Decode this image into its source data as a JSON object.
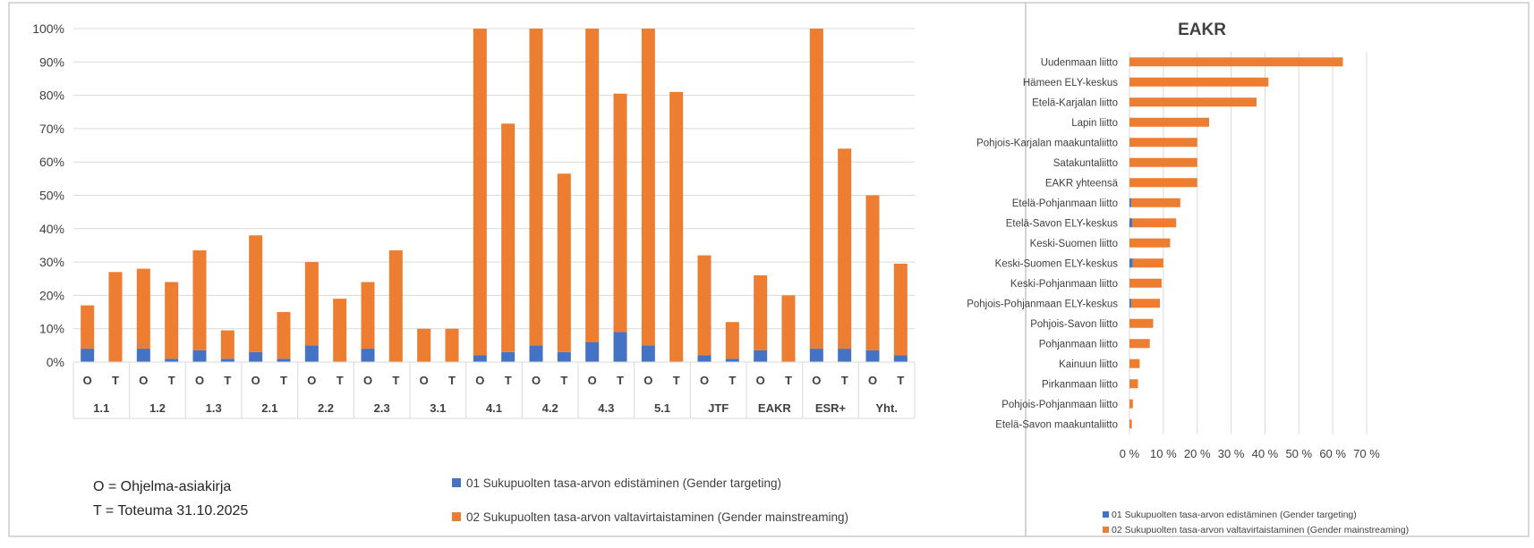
{
  "colors": {
    "targeting": "#4472C4",
    "mainstreaming": "#ED7D31",
    "grid": "#d9d9d9",
    "text": "#404040"
  },
  "chart_data": [
    {
      "type": "bar",
      "stacked": true,
      "yticks": [
        "0%",
        "10%",
        "20%",
        "30%",
        "40%",
        "50%",
        "60%",
        "70%",
        "80%",
        "90%",
        "100%"
      ],
      "ylim": [
        0,
        100
      ],
      "grid": true,
      "legend_position": "bottom",
      "groups": [
        "1.1",
        "1.2",
        "1.3",
        "2.1",
        "2.2",
        "2.3",
        "3.1",
        "4.1",
        "4.2",
        "4.3",
        "5.1",
        "JTF",
        "EAKR",
        "ESR+",
        "Yht."
      ],
      "subcategories": [
        "O",
        "T"
      ],
      "series": [
        {
          "name": "01 Sukupuolten tasa-arvon edistäminen (Gender targeting)",
          "color_key": "targeting",
          "values": [
            4,
            0,
            4,
            1,
            3.5,
            1,
            3,
            1,
            5,
            0,
            4,
            0,
            0,
            0,
            2,
            3,
            5,
            3,
            6,
            9,
            5,
            0,
            2,
            1,
            3.5,
            0,
            4,
            4,
            3.5,
            2
          ]
        },
        {
          "name": "02 Sukupuolten tasa-arvon valtavirtaistaminen (Gender mainstreaming)",
          "color_key": "mainstreaming",
          "values": [
            13,
            27,
            24,
            23,
            30,
            8.5,
            35,
            14,
            25,
            19,
            20,
            33.5,
            10,
            10,
            98,
            68.5,
            95,
            53.5,
            94,
            71.5,
            95,
            81,
            30,
            11,
            22.5,
            20,
            96,
            60,
            46.5,
            27.5
          ]
        }
      ]
    },
    {
      "type": "bar",
      "orientation": "horizontal",
      "stacked": true,
      "title": "EAKR",
      "xticks": [
        "0 %",
        "10 %",
        "20 %",
        "30 %",
        "40 %",
        "50 %",
        "60 %",
        "70 %"
      ],
      "xlim": [
        0,
        70
      ],
      "grid": true,
      "legend_position": "bottom",
      "categories": [
        "Uudenmaan liitto",
        "Hämeen ELY-keskus",
        "Etelä-Karjalan liitto",
        "Lapin liitto",
        "Pohjois-Karjalan maakuntaliitto",
        "Satakuntaliitto",
        "EAKR yhteensä",
        "Etelä-Pohjanmaan liitto",
        "Etelä-Savon ELY-keskus",
        "Keski-Suomen liitto",
        "Keski-Suomen ELY-keskus",
        "Keski-Pohjanmaan liitto",
        "Pohjois-Pohjanmaan ELY-keskus",
        "Pohjois-Savon liitto",
        "Pohjanmaan liitto",
        "Kainuun liitto",
        "Pirkanmaan liitto",
        "Pohjois-Pohjanmaan liitto",
        "Etelä-Savon maakuntaliitto"
      ],
      "series": [
        {
          "name": "01 Sukupuolten tasa-arvon edistäminen (Gender targeting)",
          "color_key": "targeting",
          "values": [
            0,
            0,
            0,
            0,
            0,
            0,
            0,
            0.5,
            0.8,
            0,
            1,
            0,
            0.5,
            0,
            0,
            0,
            0,
            0,
            0
          ]
        },
        {
          "name": "02 Sukupuolten tasa-arvon valtavirtaistaminen (Gender mainstreaming)",
          "color_key": "mainstreaming",
          "values": [
            63,
            41,
            37.5,
            23.5,
            20,
            20,
            20,
            14.5,
            13,
            12,
            9,
            9.5,
            8.5,
            7,
            6,
            3,
            2.5,
            1,
            0.7
          ]
        }
      ]
    }
  ],
  "notes": {
    "o_line": "O = Ohjelma-asiakirja",
    "t_line": "T = Toteuma 31.10.2025"
  }
}
